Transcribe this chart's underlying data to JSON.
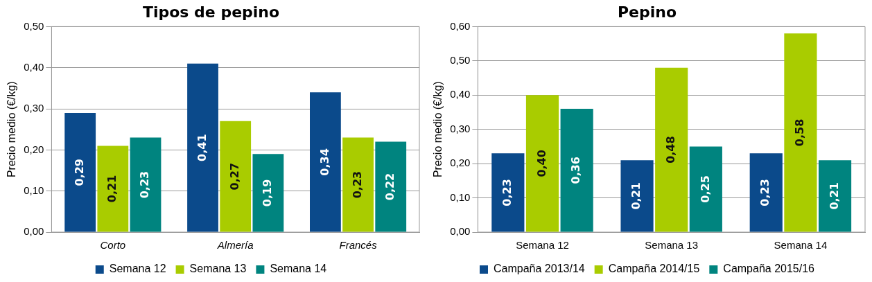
{
  "chart_data": [
    {
      "type": "bar",
      "title": "Tipos de pepino",
      "ylabel": "Precio medio (€/kg)",
      "categories": [
        "Corto",
        "Almería",
        "Francés"
      ],
      "series": [
        {
          "name": "Semana 12",
          "color": "#0b4a8b",
          "values": [
            0.29,
            0.41,
            0.34
          ],
          "value_labels": [
            "0,29",
            "0,41",
            "0,34"
          ]
        },
        {
          "name": "Semana 13",
          "color": "#a9cc00",
          "values": [
            0.21,
            0.27,
            0.23
          ],
          "value_labels": [
            "0,21",
            "0,27",
            "0,23"
          ]
        },
        {
          "name": "Semana 14",
          "color": "#00847f",
          "values": [
            0.23,
            0.19,
            0.22
          ],
          "value_labels": [
            "0,23",
            "0,19",
            "0,22"
          ]
        }
      ],
      "ylim": [
        0,
        0.5
      ],
      "yticks": [
        {
          "value": 0,
          "label": "0,00"
        },
        {
          "value": 0.1,
          "label": "0,10"
        },
        {
          "value": 0.2,
          "label": "0,20"
        },
        {
          "value": 0.3,
          "label": "0,30"
        },
        {
          "value": 0.4,
          "label": "0,40"
        },
        {
          "value": 0.5,
          "label": "0,50"
        }
      ],
      "grid": "y",
      "legend": "bottom"
    },
    {
      "type": "bar",
      "title": "Pepino",
      "ylabel": "Precio medio (€/kg)",
      "categories": [
        "Semana 12",
        "Semana 13",
        "Semana 14"
      ],
      "series": [
        {
          "name": "Campaña 2013/14",
          "color": "#0b4a8b",
          "values": [
            0.23,
            0.21,
            0.23
          ],
          "value_labels": [
            "0,23",
            "0,21",
            "0,23"
          ]
        },
        {
          "name": "Campaña 2014/15",
          "color": "#a9cc00",
          "values": [
            0.4,
            0.48,
            0.58
          ],
          "value_labels": [
            "0,40",
            "0,48",
            "0,58"
          ]
        },
        {
          "name": "Campaña 2015/16",
          "color": "#00847f",
          "values": [
            0.36,
            0.25,
            0.21
          ],
          "value_labels": [
            "0,36",
            "0,25",
            "0,21"
          ]
        }
      ],
      "ylim": [
        0,
        0.6
      ],
      "yticks": [
        {
          "value": 0,
          "label": "0,00"
        },
        {
          "value": 0.1,
          "label": "0,10"
        },
        {
          "value": 0.2,
          "label": "0,20"
        },
        {
          "value": 0.3,
          "label": "0,30"
        },
        {
          "value": 0.4,
          "label": "0,40"
        },
        {
          "value": 0.5,
          "label": "0,50"
        },
        {
          "value": 0.6,
          "label": "0,60"
        }
      ],
      "grid": "y",
      "legend": "bottom"
    }
  ]
}
